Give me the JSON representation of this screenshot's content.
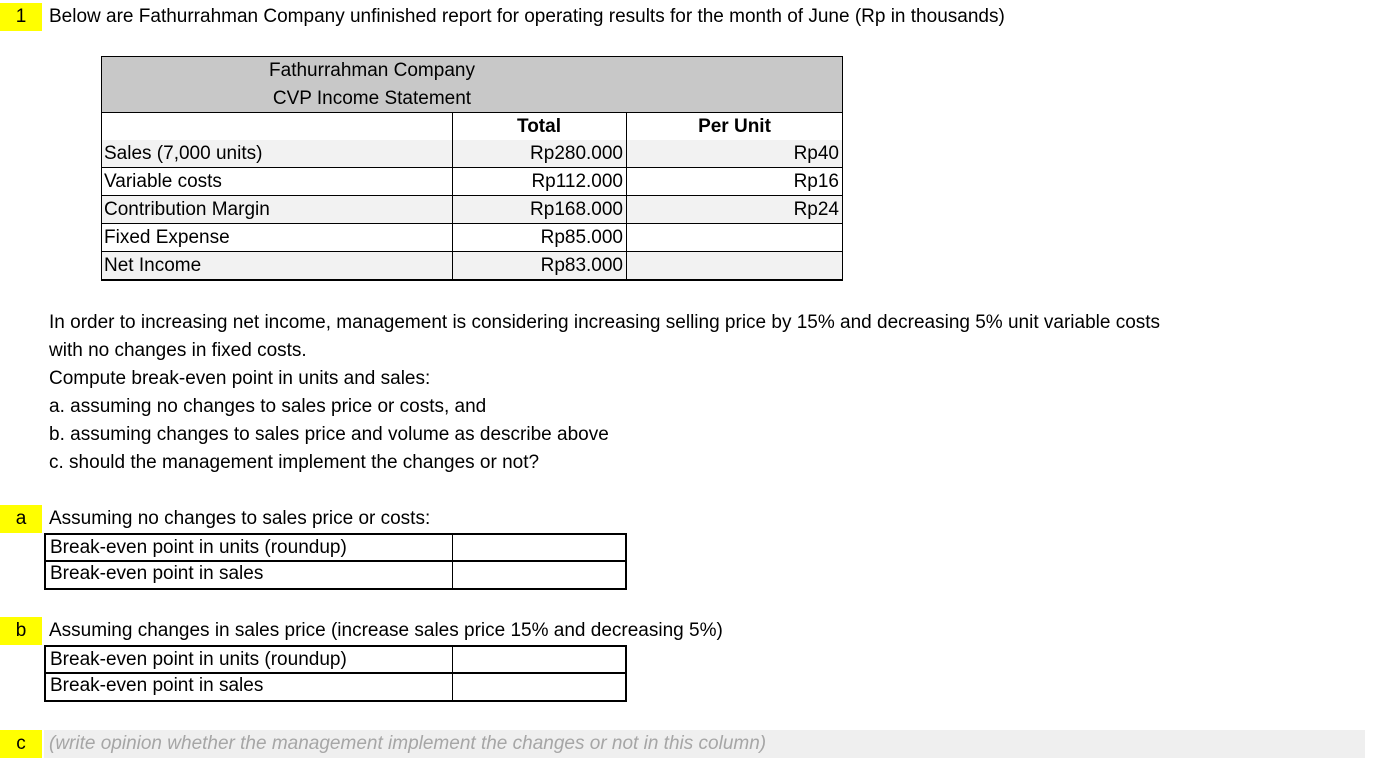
{
  "question": {
    "number": "1",
    "text": "Below are Fathurrahman Company unfinished report for operating results for the month of June (Rp in thousands)"
  },
  "table": {
    "title": "Fathurrahman Company",
    "subtitle": "CVP Income Statement",
    "headers": [
      "Total",
      "Per Unit"
    ],
    "rows": [
      [
        "Sales (7,000 units)",
        "Rp280.000",
        "Rp40"
      ],
      [
        "Variable costs",
        "Rp112.000",
        "Rp16"
      ],
      [
        "Contribution Margin",
        "Rp168.000",
        "Rp24"
      ],
      [
        "Fixed Expense",
        "Rp85.000"
      ],
      [
        "Net Income",
        "Rp83.000"
      ]
    ]
  },
  "instructions": [
    "In order to increasing net income, management is considering increasing selling price by 15% and decreasing 5% unit variable costs",
    "with no changes in fixed costs.",
    "Compute break-even point in units and sales:",
    "a. assuming no changes to sales price or costs, and",
    "b. assuming changes to sales price and volume as describe above",
    "c. should the management implement the changes or not?"
  ],
  "parts": [
    {
      "label": "a",
      "title": "Assuming no changes to sales price or costs:",
      "rows": [
        "Break-even point in units (roundup)",
        "Break-even point in sales"
      ]
    },
    {
      "label": "b",
      "title": "Assuming changes in sales price (increase sales price 15% and decreasing 5%)",
      "rows": [
        "Break-even point in units (roundup)",
        "Break-even point in sales"
      ]
    }
  ],
  "part_c": {
    "label": "c",
    "placeholder": "(write opinion whether the management implement the changes or not in this column)"
  }
}
